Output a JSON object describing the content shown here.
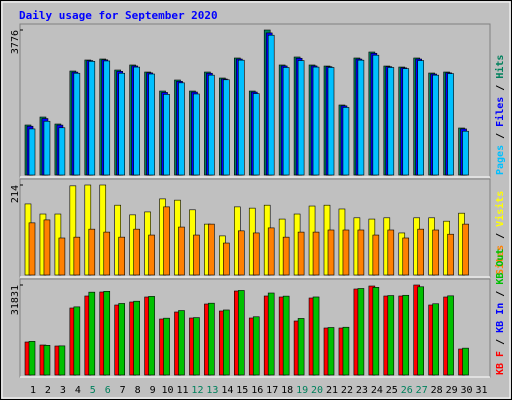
{
  "chart_data": [
    {
      "type": "bar",
      "title": "Daily usage for September 2020",
      "legend_separator": " / ",
      "draw_order": "reverse",
      "ylim": [
        0,
        3776
      ],
      "yticks": [
        3776
      ],
      "series": [
        {
          "name": "Pages",
          "color": "#00c0ff",
          "values": [
            1200,
            1400,
            1230,
            2650,
            2960,
            2970,
            2650,
            2810,
            2630,
            2100,
            2400,
            2110,
            2600,
            2480,
            2990,
            2120,
            3640,
            2800,
            2980,
            2810,
            2800,
            1760,
            2990,
            3120,
            2800,
            2770,
            2980,
            2600,
            2640,
            1140,
            null
          ]
        },
        {
          "name": "Files",
          "color": "#0000ff",
          "values": [
            1270,
            1470,
            1300,
            2680,
            2980,
            3000,
            2700,
            2840,
            2660,
            2150,
            2440,
            2160,
            2650,
            2500,
            3020,
            2160,
            3700,
            2840,
            3040,
            2840,
            2820,
            1800,
            3020,
            3170,
            2820,
            2790,
            3020,
            2630,
            2660,
            1200,
            null
          ]
        },
        {
          "name": "Hits",
          "color": "#00805c",
          "values": [
            1302,
            1510,
            1328,
            2708,
            2995,
            3021,
            2734,
            2865,
            2682,
            2187,
            2474,
            2187,
            2682,
            2526,
            3047,
            2187,
            3776,
            2865,
            3073,
            2865,
            2838,
            1823,
            3047,
            3203,
            2838,
            2812,
            3047,
            2656,
            2682,
            1224,
            null
          ]
        }
      ]
    },
    {
      "type": "bar",
      "legend_separator": " / ",
      "draw_order": "reverse",
      "ylim": [
        0,
        214
      ],
      "yticks": [
        214
      ],
      "series": [
        {
          "name": "Sites",
          "color": "#ff8000",
          "values": [
            124,
            131,
            88,
            90,
            109,
            102,
            90,
            109,
            95,
            162,
            114,
            95,
            121,
            76,
            105,
            100,
            112,
            90,
            102,
            102,
            107,
            107,
            107,
            95,
            107,
            88,
            109,
            107,
            97,
            121,
            null
          ]
        },
        {
          "name": "Visits",
          "color": "#ffff00",
          "values": [
            169,
            145,
            145,
            212,
            214,
            214,
            166,
            143,
            150,
            181,
            178,
            155,
            121,
            93,
            162,
            159,
            166,
            133,
            145,
            164,
            166,
            157,
            136,
            133,
            136,
            100,
            136,
            136,
            128,
            147,
            null
          ]
        }
      ]
    },
    {
      "type": "bar",
      "legend_separator": " / ",
      "draw_order": "forward",
      "ylim": [
        0,
        31831
      ],
      "yticks": [
        31831
      ],
      "categories": [
        "1",
        "2",
        "3",
        "4",
        "5",
        "6",
        "7",
        "8",
        "9",
        "10",
        "11",
        "12",
        "13",
        "14",
        "15",
        "16",
        "17",
        "18",
        "19",
        "20",
        "21",
        "22",
        "23",
        "24",
        "25",
        "26",
        "27",
        "28",
        "29",
        "30",
        "31"
      ],
      "category_colors": [
        "#000000",
        "#000000",
        "#000000",
        "#000000",
        "#00805c",
        "#00805c",
        "#000000",
        "#000000",
        "#000000",
        "#000000",
        "#000000",
        "#00805c",
        "#00805c",
        "#000000",
        "#000000",
        "#000000",
        "#000000",
        "#000000",
        "#00805c",
        "#00805c",
        "#000000",
        "#000000",
        "#000000",
        "#000000",
        "#000000",
        "#00805c",
        "#00805c",
        "#000000",
        "#000000",
        "#000000",
        "#000000"
      ],
      "series": [
        {
          "name": "KB F",
          "color": "#ff0000",
          "values": [
            11671,
            10610,
            10257,
            23697,
            27941,
            29356,
            24758,
            25819,
            27588,
            19806,
            22282,
            20160,
            25112,
            22636,
            29709,
            20160,
            27941,
            27588,
            19099,
            27234,
            16623,
            16623,
            30416,
            31477,
            27941,
            27941,
            31831,
            24758,
            27588,
            9196,
            null
          ]
        },
        {
          "name": "KB In",
          "color": "#0000ff",
          "values": [
            null,
            null,
            null,
            null,
            null,
            null,
            null,
            null,
            null,
            null,
            null,
            null,
            null,
            null,
            null,
            null,
            null,
            null,
            null,
            null,
            null,
            null,
            null,
            null,
            null,
            null,
            null,
            null,
            null,
            null,
            null
          ]
        },
        {
          "name": "KB Out",
          "color": "#00c000",
          "values": [
            11900,
            10500,
            10300,
            24100,
            29300,
            29600,
            25300,
            26100,
            27800,
            20100,
            22800,
            20300,
            25400,
            23000,
            29900,
            20600,
            29000,
            27900,
            20000,
            27600,
            16800,
            16900,
            30600,
            31000,
            28100,
            28200,
            31200,
            25200,
            28000,
            9500,
            null
          ]
        }
      ]
    }
  ]
}
